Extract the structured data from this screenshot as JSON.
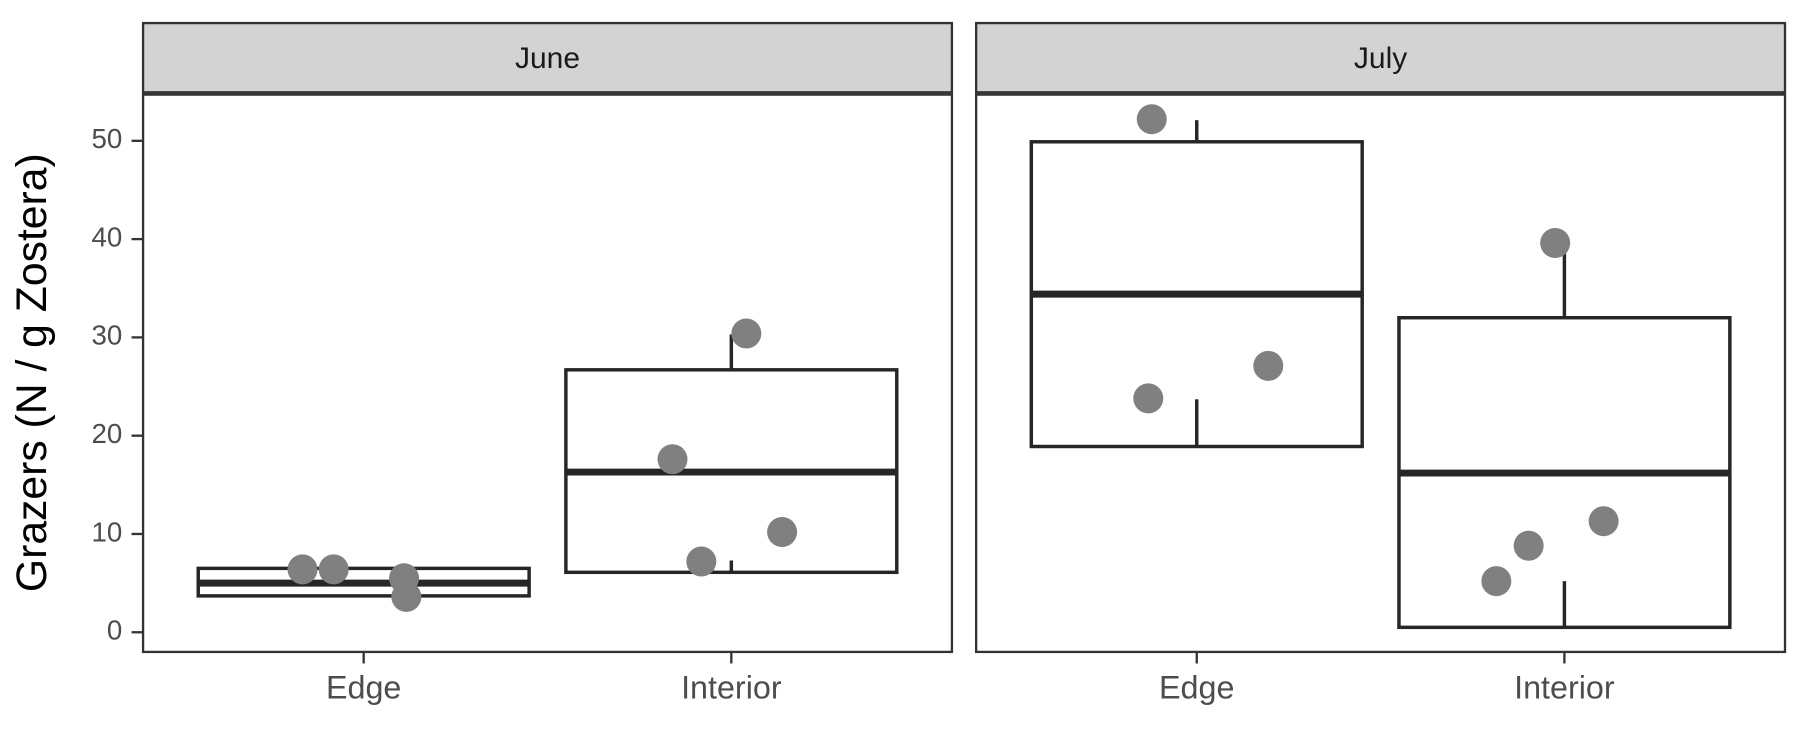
{
  "chart_data": {
    "type": "boxplot",
    "y_label": "Grazers (N / g Zostera)",
    "categories": [
      "Edge",
      "Interior"
    ],
    "ylim": [
      -2,
      54.7
    ],
    "yticks": [
      0,
      10,
      20,
      30,
      40,
      50
    ],
    "point_color": "#808080",
    "box_color": "#262626",
    "panels": [
      {
        "title": "June",
        "boxes": [
          {
            "lower": 3.7,
            "q1": 3.7,
            "median": 5.0,
            "q3": 6.5,
            "upper": 6.5,
            "points": [
              6.4,
              6.4,
              5.5,
              3.6
            ]
          },
          {
            "lower": 7.3,
            "q1": 6.1,
            "median": 16.3,
            "q3": 26.7,
            "upper": 30.3,
            "points": [
              30.4,
              17.6,
              7.2,
              10.2
            ]
          }
        ]
      },
      {
        "title": "July",
        "boxes": [
          {
            "lower": 23.7,
            "q1": 18.9,
            "median": 34.4,
            "q3": 49.9,
            "upper": 52.1,
            "points": [
              52.2,
              23.8,
              27.1
            ]
          },
          {
            "lower": 5.2,
            "q1": 0.5,
            "median": 16.2,
            "q3": 32.0,
            "upper": 39.5,
            "points": [
              39.6,
              5.2,
              8.8,
              11.3
            ]
          }
        ]
      }
    ]
  }
}
